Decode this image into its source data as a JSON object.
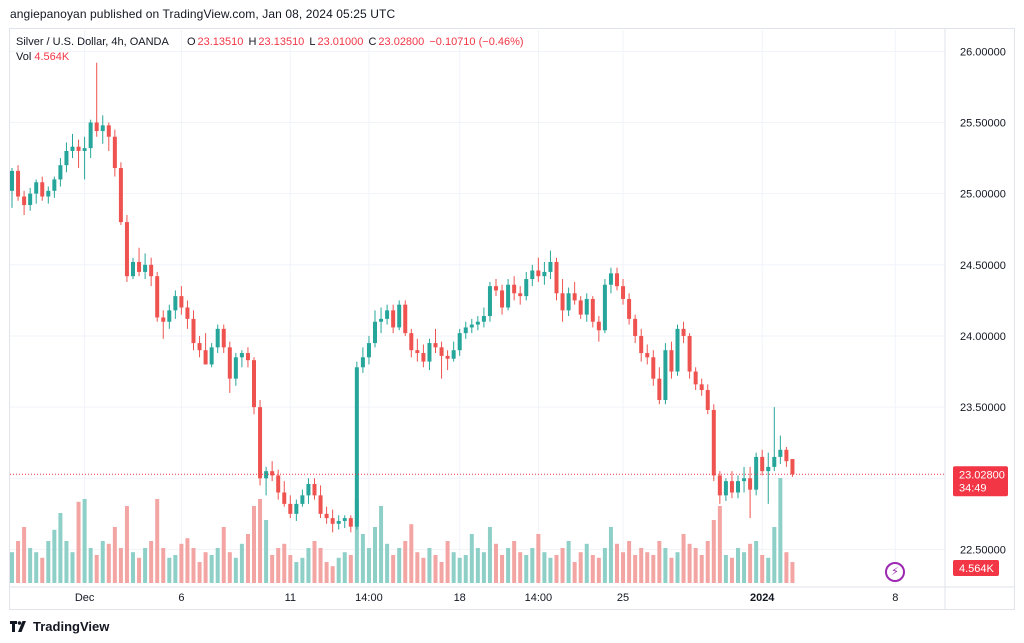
{
  "caption": "angiepanoyan published on TradingView.com, Jan 08, 2024 05:25 UTC",
  "legend": {
    "symbol": "Silver / U.S. Dollar, 4h, OANDA",
    "open_key": "O",
    "open": "23.13510",
    "high_key": "H",
    "high": "23.13510",
    "low_key": "L",
    "low": "23.01000",
    "close_key": "C",
    "close": "23.02800",
    "change": "−0.10710 (−0.46%)",
    "vol_key": "Vol",
    "vol": "4.564K"
  },
  "footer": {
    "brand": "TradingView"
  },
  "icons": {
    "brand_logo": "tradingview-logo-icon",
    "live": "lightning-icon"
  },
  "colors": {
    "up": "#26a69a",
    "down": "#ef5350",
    "vol_up": "#8ed0c8",
    "vol_down": "#f3a5a3",
    "price_label": "#f23645",
    "grid": "#f0f3fa"
  },
  "chart_data": {
    "type": "candlestick",
    "ylim": [
      22.25,
      26.15
    ],
    "y_ticks": [
      "26.00000",
      "25.50000",
      "25.00000",
      "24.50000",
      "24.00000",
      "23.50000",
      "23.00000",
      "22.50000"
    ],
    "x_ticks": [
      {
        "label": "Dec",
        "bar": 12,
        "bold": false
      },
      {
        "label": "6",
        "bar": 28,
        "bold": false
      },
      {
        "label": "11",
        "bar": 46,
        "bold": false
      },
      {
        "label": "14:00",
        "bar": 59,
        "bold": false
      },
      {
        "label": "18",
        "bar": 74,
        "bold": false
      },
      {
        "label": "14:00",
        "bar": 87,
        "bold": false
      },
      {
        "label": "25",
        "bar": 101,
        "bold": false
      },
      {
        "label": "2024",
        "bar": 124,
        "bold": true
      },
      {
        "label": "8",
        "bar": 146,
        "bold": false
      }
    ],
    "last_price_label": "23.02800",
    "countdown_label": "34:49",
    "last_price": 23.028,
    "volume_label": "4.564K",
    "candles": [
      [
        25.02,
        25.18,
        24.9,
        25.16
      ],
      [
        25.16,
        25.2,
        24.95,
        24.98
      ],
      [
        24.98,
        25.02,
        24.85,
        24.92
      ],
      [
        24.92,
        25.04,
        24.88,
        25.0
      ],
      [
        25.0,
        25.1,
        24.93,
        25.08
      ],
      [
        25.08,
        25.12,
        24.95,
        24.98
      ],
      [
        24.98,
        25.05,
        24.93,
        25.02
      ],
      [
        25.02,
        25.12,
        24.97,
        25.1
      ],
      [
        25.1,
        25.25,
        25.05,
        25.2
      ],
      [
        25.2,
        25.36,
        25.15,
        25.3
      ],
      [
        25.3,
        25.42,
        25.25,
        25.33
      ],
      [
        25.33,
        25.38,
        25.18,
        25.3
      ],
      [
        25.3,
        25.4,
        25.1,
        25.32
      ],
      [
        25.32,
        25.52,
        25.25,
        25.5
      ],
      [
        25.5,
        25.92,
        25.4,
        25.44
      ],
      [
        25.44,
        25.55,
        25.35,
        25.48
      ],
      [
        25.48,
        25.5,
        25.3,
        25.4
      ],
      [
        25.4,
        25.45,
        25.12,
        25.18
      ],
      [
        25.18,
        25.22,
        24.78,
        24.8
      ],
      [
        24.8,
        24.85,
        24.38,
        24.42
      ],
      [
        24.42,
        24.55,
        24.4,
        24.52
      ],
      [
        24.52,
        24.62,
        24.42,
        24.45
      ],
      [
        24.45,
        24.58,
        24.4,
        24.5
      ],
      [
        24.5,
        24.55,
        24.35,
        24.42
      ],
      [
        24.42,
        24.45,
        24.1,
        24.13
      ],
      [
        24.13,
        24.18,
        23.98,
        24.1
      ],
      [
        24.1,
        24.22,
        24.05,
        24.18
      ],
      [
        24.18,
        24.32,
        24.12,
        24.28
      ],
      [
        24.28,
        24.35,
        24.15,
        24.2
      ],
      [
        24.2,
        24.25,
        24.05,
        24.12
      ],
      [
        24.12,
        24.18,
        23.9,
        23.95
      ],
      [
        23.95,
        24.0,
        23.85,
        23.9
      ],
      [
        23.9,
        24.02,
        23.8,
        23.8
      ],
      [
        23.8,
        23.95,
        23.78,
        23.92
      ],
      [
        23.92,
        24.08,
        23.88,
        24.05
      ],
      [
        24.05,
        24.08,
        23.88,
        23.92
      ],
      [
        23.92,
        23.96,
        23.6,
        23.7
      ],
      [
        23.7,
        23.88,
        23.65,
        23.85
      ],
      [
        23.85,
        23.9,
        23.78,
        23.88
      ],
      [
        23.88,
        23.92,
        23.78,
        23.83
      ],
      [
        23.83,
        23.85,
        23.45,
        23.5
      ],
      [
        23.5,
        23.55,
        22.95,
        23.0
      ],
      [
        23.0,
        23.08,
        22.88,
        23.05
      ],
      [
        23.05,
        23.12,
        22.98,
        23.02
      ],
      [
        23.02,
        23.06,
        22.85,
        22.9
      ],
      [
        22.9,
        22.98,
        22.8,
        22.82
      ],
      [
        22.82,
        22.88,
        22.72,
        22.75
      ],
      [
        22.75,
        22.85,
        22.7,
        22.82
      ],
      [
        22.82,
        22.92,
        22.8,
        22.88
      ],
      [
        22.88,
        23.0,
        22.82,
        22.96
      ],
      [
        22.96,
        23.0,
        22.85,
        22.88
      ],
      [
        22.88,
        22.95,
        22.72,
        22.75
      ],
      [
        22.75,
        22.8,
        22.68,
        22.72
      ],
      [
        22.72,
        22.78,
        22.62,
        22.68
      ],
      [
        22.68,
        22.74,
        22.64,
        22.7
      ],
      [
        22.7,
        22.74,
        22.65,
        22.72
      ],
      [
        22.72,
        22.74,
        22.62,
        22.66
      ],
      [
        22.66,
        23.82,
        22.64,
        23.78
      ],
      [
        23.78,
        23.92,
        23.74,
        23.85
      ],
      [
        23.85,
        24.0,
        23.8,
        23.95
      ],
      [
        23.95,
        24.18,
        23.92,
        24.1
      ],
      [
        24.1,
        24.2,
        24.02,
        24.12
      ],
      [
        24.12,
        24.22,
        24.08,
        24.18
      ],
      [
        24.18,
        24.22,
        24.02,
        24.06
      ],
      [
        24.06,
        24.25,
        24.04,
        24.22
      ],
      [
        24.22,
        24.25,
        24.0,
        24.02
      ],
      [
        24.02,
        24.05,
        23.85,
        23.9
      ],
      [
        23.9,
        23.98,
        23.82,
        23.88
      ],
      [
        23.88,
        23.94,
        23.78,
        23.82
      ],
      [
        23.82,
        23.98,
        23.76,
        23.95
      ],
      [
        23.95,
        24.05,
        23.88,
        23.92
      ],
      [
        23.92,
        23.96,
        23.7,
        23.86
      ],
      [
        23.86,
        23.9,
        23.76,
        23.84
      ],
      [
        23.84,
        23.96,
        23.82,
        23.9
      ],
      [
        23.9,
        24.05,
        23.86,
        24.02
      ],
      [
        24.02,
        24.1,
        23.98,
        24.06
      ],
      [
        24.06,
        24.12,
        24.02,
        24.08
      ],
      [
        24.08,
        24.14,
        24.04,
        24.1
      ],
      [
        24.1,
        24.2,
        24.06,
        24.14
      ],
      [
        24.14,
        24.38,
        24.1,
        24.35
      ],
      [
        24.35,
        24.4,
        24.28,
        24.32
      ],
      [
        24.32,
        24.36,
        24.15,
        24.2
      ],
      [
        24.2,
        24.4,
        24.18,
        24.36
      ],
      [
        24.36,
        24.42,
        24.25,
        24.3
      ],
      [
        24.3,
        24.35,
        24.22,
        24.28
      ],
      [
        24.28,
        24.45,
        24.25,
        24.4
      ],
      [
        24.4,
        24.5,
        24.35,
        24.46
      ],
      [
        24.46,
        24.55,
        24.38,
        24.42
      ],
      [
        24.42,
        24.52,
        24.36,
        24.45
      ],
      [
        24.45,
        24.6,
        24.4,
        24.52
      ],
      [
        24.52,
        24.55,
        24.25,
        24.3
      ],
      [
        24.3,
        24.4,
        24.1,
        24.18
      ],
      [
        24.18,
        24.34,
        24.14,
        24.3
      ],
      [
        24.3,
        24.38,
        24.22,
        24.25
      ],
      [
        24.25,
        24.28,
        24.12,
        24.15
      ],
      [
        24.15,
        24.3,
        24.1,
        24.26
      ],
      [
        24.26,
        24.28,
        24.06,
        24.1
      ],
      [
        24.1,
        24.14,
        23.96,
        24.04
      ],
      [
        24.04,
        24.4,
        24.02,
        24.36
      ],
      [
        24.36,
        24.48,
        24.3,
        24.44
      ],
      [
        24.44,
        24.48,
        24.32,
        24.35
      ],
      [
        24.35,
        24.4,
        24.22,
        24.26
      ],
      [
        24.26,
        24.3,
        24.08,
        24.12
      ],
      [
        24.12,
        24.15,
        23.95,
        24.0
      ],
      [
        24.0,
        24.05,
        23.82,
        23.88
      ],
      [
        23.88,
        23.94,
        23.8,
        23.85
      ],
      [
        23.85,
        23.9,
        23.65,
        23.7
      ],
      [
        23.7,
        23.78,
        23.52,
        23.55
      ],
      [
        23.55,
        23.95,
        23.52,
        23.9
      ],
      [
        23.9,
        23.96,
        23.7,
        23.75
      ],
      [
        23.75,
        24.08,
        23.72,
        24.05
      ],
      [
        24.05,
        24.1,
        23.95,
        24.0
      ],
      [
        24.0,
        24.02,
        23.7,
        23.75
      ],
      [
        23.75,
        23.78,
        23.62,
        23.66
      ],
      [
        23.66,
        23.7,
        23.58,
        23.62
      ],
      [
        23.62,
        23.66,
        23.45,
        23.48
      ],
      [
        23.48,
        23.52,
        22.98,
        23.02
      ],
      [
        23.02,
        23.05,
        22.82,
        22.88
      ],
      [
        22.88,
        23.0,
        22.84,
        22.98
      ],
      [
        22.98,
        23.05,
        22.86,
        22.9
      ],
      [
        22.9,
        23.02,
        22.86,
        22.98
      ],
      [
        22.98,
        23.08,
        22.9,
        23.0
      ],
      [
        23.0,
        23.08,
        22.72,
        22.92
      ],
      [
        22.92,
        23.18,
        22.88,
        23.15
      ],
      [
        23.15,
        23.2,
        23.02,
        23.05
      ],
      [
        23.05,
        23.18,
        22.82,
        23.08
      ],
      [
        23.08,
        23.5,
        23.05,
        23.15
      ],
      [
        23.15,
        23.3,
        23.1,
        23.2
      ],
      [
        23.2,
        23.22,
        23.08,
        23.12
      ],
      [
        23.1351,
        23.1351,
        23.01,
        23.028
      ]
    ],
    "volumes": [
      0.22,
      0.3,
      0.4,
      0.25,
      0.22,
      0.18,
      0.3,
      0.38,
      0.5,
      0.3,
      0.22,
      0.58,
      0.6,
      0.25,
      0.2,
      0.3,
      0.28,
      0.4,
      0.25,
      0.55,
      0.22,
      0.18,
      0.25,
      0.3,
      0.6,
      0.25,
      0.18,
      0.2,
      0.28,
      0.32,
      0.25,
      0.15,
      0.22,
      0.2,
      0.25,
      0.4,
      0.22,
      0.18,
      0.28,
      0.35,
      0.55,
      0.6,
      0.45,
      0.2,
      0.25,
      0.28,
      0.2,
      0.15,
      0.18,
      0.25,
      0.3,
      0.25,
      0.15,
      0.12,
      0.18,
      0.22,
      0.2,
      0.6,
      0.35,
      0.25,
      0.4,
      0.55,
      0.28,
      0.2,
      0.25,
      0.3,
      0.42,
      0.22,
      0.18,
      0.25,
      0.2,
      0.15,
      0.3,
      0.22,
      0.18,
      0.2,
      0.35,
      0.25,
      0.22,
      0.4,
      0.28,
      0.2,
      0.25,
      0.3,
      0.22,
      0.2,
      0.25,
      0.35,
      0.22,
      0.18,
      0.2,
      0.25,
      0.3,
      0.15,
      0.22,
      0.28,
      0.2,
      0.18,
      0.25,
      0.4,
      0.28,
      0.22,
      0.3,
      0.2,
      0.25,
      0.22,
      0.2,
      0.3,
      0.25,
      0.18,
      0.22,
      0.35,
      0.28,
      0.25,
      0.2,
      0.3,
      0.45,
      0.55,
      0.2,
      0.18,
      0.25,
      0.22,
      0.28,
      0.3,
      0.2,
      0.18,
      0.4,
      0.75,
      0.22,
      0.15
    ]
  }
}
